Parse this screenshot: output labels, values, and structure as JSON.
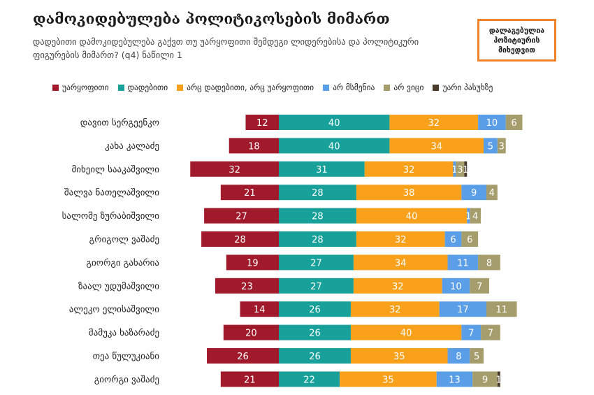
{
  "header": {
    "title": "დამოკიდებულება პოლიტიკოსების მიმართ",
    "subtitle": "დადებითი დამოკიდებულება გაქვთ თუ უარყოფითი შემდეგი ლიდერებისა და პოლიტიკური ფიგურების მიმართ? (q4) ნაწილი 1",
    "badge": "დალაგებულია პოზიტიურის მიხედვით"
  },
  "chart_data": {
    "type": "bar",
    "orientation": "horizontal",
    "stacked": true,
    "diverging_at": "უარყოფითი",
    "title": "დამოკიდებულება პოლიტიკოსების მიმართ",
    "categories": [
      "დავით სერგეენკო",
      "კახა კალაძე",
      "მიხეილ სააკაშვილი",
      "შალვა ნათელაშვილი",
      "სალომე ზურაბიშვილი",
      "გრიგოლ ვაშაძე",
      "გიორგი გახარია",
      "ზაალ უდუმაშვილი",
      "ალეკო ელისაშვილი",
      "მამუკა ხაზარაძე",
      "თეა წულუკიანი",
      "გიორგი ვაშაძე"
    ],
    "series": [
      {
        "name": "უარყოფითი",
        "color": "#a11a2b",
        "values": [
          12,
          18,
          32,
          21,
          27,
          28,
          19,
          23,
          14,
          20,
          26,
          21
        ]
      },
      {
        "name": "დადებითი",
        "color": "#17a19a",
        "values": [
          40,
          40,
          31,
          28,
          28,
          28,
          27,
          27,
          26,
          26,
          26,
          22
        ]
      },
      {
        "name": "არც დადებითი, არც უარყოფითი",
        "color": "#f9a11b",
        "values": [
          32,
          34,
          32,
          38,
          40,
          32,
          34,
          32,
          32,
          40,
          35,
          35
        ]
      },
      {
        "name": "არ მსმენია",
        "color": "#5a9ee8",
        "values": [
          10,
          5,
          1,
          9,
          1,
          6,
          11,
          10,
          17,
          7,
          8,
          13
        ]
      },
      {
        "name": "არ ვიცი",
        "color": "#a59d6c",
        "values": [
          6,
          3,
          3,
          4,
          4,
          6,
          8,
          7,
          11,
          7,
          5,
          9
        ]
      },
      {
        "name": "უარი პასუხზე",
        "color": "#4a3b2b",
        "values": [
          0,
          0,
          1,
          0,
          0,
          0,
          0,
          0,
          0,
          0,
          0,
          1
        ]
      }
    ],
    "value_labels": [
      [
        "12",
        "40",
        "32",
        "10",
        "6",
        ""
      ],
      [
        "18",
        "40",
        "34",
        "5",
        "3",
        ""
      ],
      [
        "32",
        "31",
        "32",
        "1",
        "3",
        "1"
      ],
      [
        "21",
        "28",
        "38",
        "9",
        "4",
        ""
      ],
      [
        "27",
        "28",
        "40",
        "1",
        "4",
        ""
      ],
      [
        "28",
        "28",
        "32",
        "6",
        "6",
        ""
      ],
      [
        "19",
        "27",
        "34",
        "11",
        "8",
        ""
      ],
      [
        "23",
        "27",
        "32",
        "10",
        "7",
        ""
      ],
      [
        "14",
        "26",
        "32",
        "17",
        "11",
        ""
      ],
      [
        "20",
        "26",
        "40",
        "7",
        "7",
        ""
      ],
      [
        "26",
        "26",
        "35",
        "8",
        "5",
        ""
      ],
      [
        "21",
        "22",
        "35",
        "13",
        "9",
        "1"
      ]
    ]
  }
}
